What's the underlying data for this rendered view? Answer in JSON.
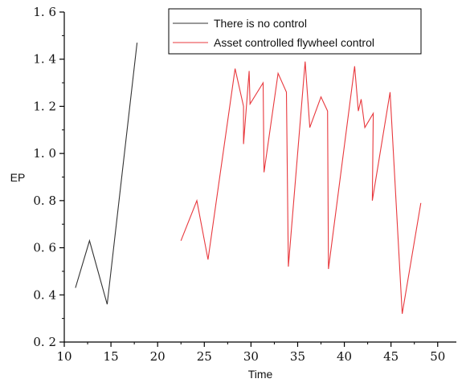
{
  "chart_data": {
    "type": "line",
    "title": "",
    "xlabel": "Time",
    "ylabel": "EP",
    "xlim": [
      10,
      52
    ],
    "ylim": [
      0.2,
      1.6
    ],
    "grid": false,
    "legend_position": "top-right",
    "x_ticks": [
      {
        "value": 10,
        "label": "10"
      },
      {
        "value": 15,
        "label": "15"
      },
      {
        "value": 20,
        "label": "20"
      },
      {
        "value": 25,
        "label": "25"
      },
      {
        "value": 30,
        "label": "30"
      },
      {
        "value": 35,
        "label": "35"
      },
      {
        "value": 40,
        "label": "40"
      },
      {
        "value": 45,
        "label": "45"
      },
      {
        "value": 50,
        "label": "50"
      }
    ],
    "y_ticks": [
      {
        "value": 0.2,
        "label": "0. 2"
      },
      {
        "value": 0.4,
        "label": "0. 4"
      },
      {
        "value": 0.6,
        "label": "0. 6"
      },
      {
        "value": 0.8,
        "label": "0. 8"
      },
      {
        "value": 1.0,
        "label": "1. 0"
      },
      {
        "value": 1.2,
        "label": "1. 2"
      },
      {
        "value": 1.4,
        "label": "1. 4"
      },
      {
        "value": 1.6,
        "label": "1. 6"
      }
    ],
    "series": [
      {
        "name": "There is no control",
        "color": "#333333",
        "points": [
          [
            11.2,
            0.43
          ],
          [
            12.7,
            0.63
          ],
          [
            14.6,
            0.36
          ],
          [
            17.8,
            1.47
          ]
        ]
      },
      {
        "name": "Asset controlled flywheel control",
        "color": "#e8383d",
        "points": [
          [
            22.5,
            0.63
          ],
          [
            24.2,
            0.8
          ],
          [
            25.4,
            0.55
          ],
          [
            28.3,
            1.36
          ],
          [
            29.2,
            1.2
          ],
          [
            29.2,
            1.04
          ],
          [
            29.8,
            1.35
          ],
          [
            29.9,
            1.21
          ],
          [
            31.3,
            1.3
          ],
          [
            31.4,
            0.92
          ],
          [
            32.9,
            1.34
          ],
          [
            33.8,
            1.26
          ],
          [
            34.0,
            0.52
          ],
          [
            35.8,
            1.39
          ],
          [
            36.3,
            1.11
          ],
          [
            37.5,
            1.24
          ],
          [
            38.2,
            1.18
          ],
          [
            38.3,
            0.51
          ],
          [
            41.1,
            1.37
          ],
          [
            41.5,
            1.18
          ],
          [
            41.8,
            1.23
          ],
          [
            42.2,
            1.11
          ],
          [
            43.1,
            1.17
          ],
          [
            43.0,
            0.8
          ],
          [
            44.9,
            1.26
          ],
          [
            46.2,
            0.32
          ],
          [
            48.2,
            0.79
          ]
        ]
      }
    ]
  }
}
